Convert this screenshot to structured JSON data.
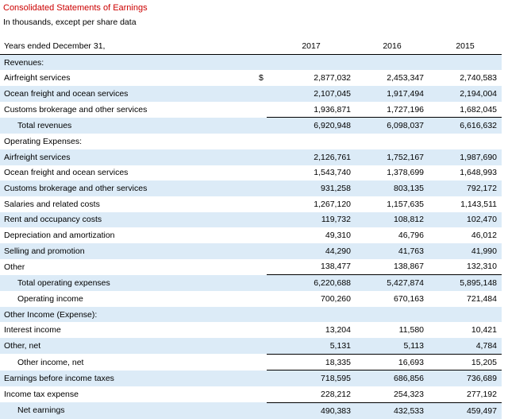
{
  "title": "Consolidated Statements of Earnings",
  "subtitle": "In thousands, except per share data",
  "header": {
    "label": "Years ended December 31,",
    "years": [
      "2017",
      "2016",
      "2015"
    ]
  },
  "rows": [
    {
      "label": "Revenues:",
      "values": [
        "",
        "",
        ""
      ],
      "currency": "",
      "indent": false
    },
    {
      "label": "Airfreight services",
      "values": [
        "2,877,032",
        "2,453,347",
        "2,740,583"
      ],
      "currency": "$",
      "indent": false
    },
    {
      "label": "Ocean freight and ocean services",
      "values": [
        "2,107,045",
        "1,917,494",
        "2,194,004"
      ],
      "currency": "",
      "indent": false
    },
    {
      "label": "Customs brokerage and other services",
      "values": [
        "1,936,871",
        "1,727,196",
        "1,682,045"
      ],
      "currency": "",
      "indent": false
    },
    {
      "label": "Total revenues",
      "values": [
        "6,920,948",
        "6,098,037",
        "6,616,632"
      ],
      "currency": "",
      "indent": true
    },
    {
      "label": "Operating Expenses:",
      "values": [
        "",
        "",
        ""
      ],
      "currency": "",
      "indent": false
    },
    {
      "label": "Airfreight services",
      "values": [
        "2,126,761",
        "1,752,167",
        "1,987,690"
      ],
      "currency": "",
      "indent": false
    },
    {
      "label": "Ocean freight and ocean services",
      "values": [
        "1,543,740",
        "1,378,699",
        "1,648,993"
      ],
      "currency": "",
      "indent": false
    },
    {
      "label": "Customs brokerage and other services",
      "values": [
        "931,258",
        "803,135",
        "792,172"
      ],
      "currency": "",
      "indent": false
    },
    {
      "label": "Salaries and related costs",
      "values": [
        "1,267,120",
        "1,157,635",
        "1,143,511"
      ],
      "currency": "",
      "indent": false
    },
    {
      "label": "Rent and occupancy costs",
      "values": [
        "119,732",
        "108,812",
        "102,470"
      ],
      "currency": "",
      "indent": false
    },
    {
      "label": "Depreciation and amortization",
      "values": [
        "49,310",
        "46,796",
        "46,012"
      ],
      "currency": "",
      "indent": false
    },
    {
      "label": "Selling and promotion",
      "values": [
        "44,290",
        "41,763",
        "41,990"
      ],
      "currency": "",
      "indent": false
    },
    {
      "label": "Other",
      "values": [
        "138,477",
        "138,867",
        "132,310"
      ],
      "currency": "",
      "indent": false
    },
    {
      "label": "Total operating expenses",
      "values": [
        "6,220,688",
        "5,427,874",
        "5,895,148"
      ],
      "currency": "",
      "indent": true
    },
    {
      "label": "Operating income",
      "values": [
        "700,260",
        "670,163",
        "721,484"
      ],
      "currency": "",
      "indent": true
    },
    {
      "label": "Other Income (Expense):",
      "values": [
        "",
        "",
        ""
      ],
      "currency": "",
      "indent": false
    },
    {
      "label": "Interest income",
      "values": [
        "13,204",
        "11,580",
        "10,421"
      ],
      "currency": "",
      "indent": false
    },
    {
      "label": "Other, net",
      "values": [
        "5,131",
        "5,113",
        "4,784"
      ],
      "currency": "",
      "indent": false
    },
    {
      "label": "Other income, net",
      "values": [
        "18,335",
        "16,693",
        "15,205"
      ],
      "currency": "",
      "indent": true
    },
    {
      "label": "Earnings before income taxes",
      "values": [
        "718,595",
        "686,856",
        "736,689"
      ],
      "currency": "",
      "indent": false
    },
    {
      "label": "Income tax expense",
      "values": [
        "228,212",
        "254,323",
        "277,192"
      ],
      "currency": "",
      "indent": false
    },
    {
      "label": "Net earnings",
      "values": [
        "490,383",
        "432,533",
        "459,497"
      ],
      "currency": "",
      "indent": true
    }
  ]
}
